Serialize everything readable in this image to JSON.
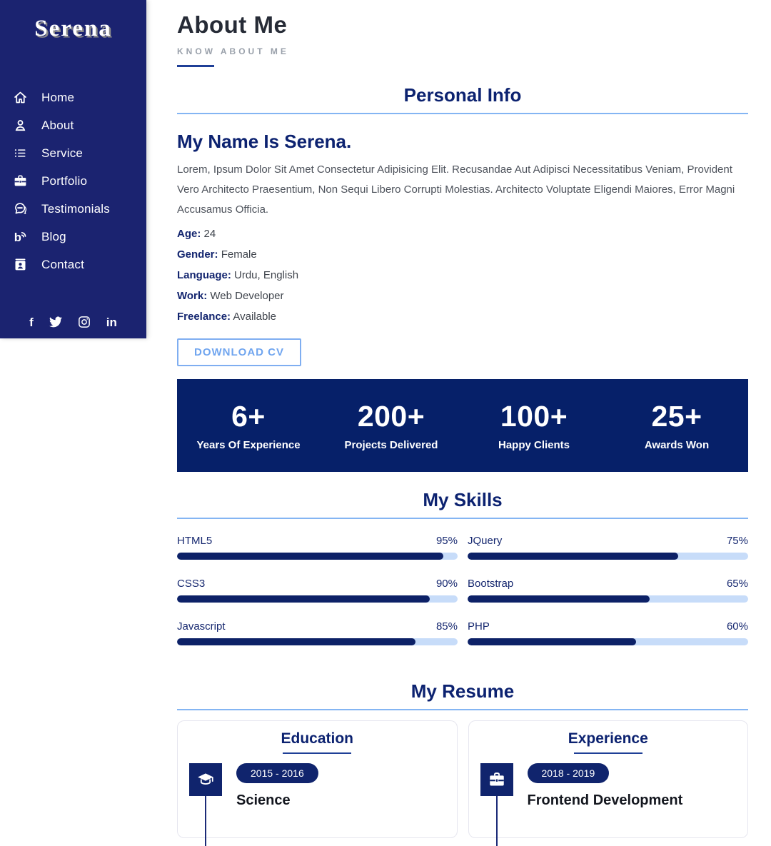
{
  "sidebar": {
    "logo": "Serena",
    "nav": [
      {
        "label": "Home",
        "icon": "home-icon"
      },
      {
        "label": "About",
        "icon": "user-icon"
      },
      {
        "label": "Service",
        "icon": "list-icon"
      },
      {
        "label": "Portfolio",
        "icon": "briefcase-icon"
      },
      {
        "label": "Testimonials",
        "icon": "chat-icon"
      },
      {
        "label": "Blog",
        "icon": "blog-icon"
      },
      {
        "label": "Contact",
        "icon": "contact-card-icon"
      }
    ],
    "social": [
      {
        "name": "facebook-icon",
        "glyph": "f"
      },
      {
        "name": "twitter-icon"
      },
      {
        "name": "instagram-icon"
      },
      {
        "name": "linkedin-icon",
        "glyph": "in"
      }
    ]
  },
  "header": {
    "title": "About Me",
    "subtitle": "KNOW ABOUT ME"
  },
  "personal_info": {
    "section_title": "Personal Info",
    "heading": "My Name Is Serena.",
    "paragraph": "Lorem, Ipsum Dolor Sit Amet Consectetur Adipisicing Elit. Recusandae Aut Adipisci Necessitatibus Veniam, Provident Vero Architecto Praesentium, Non Sequi Libero Corrupti Molestias. Architecto Voluptate Eligendi Maiores, Error Magni Accusamus Officia.",
    "details": [
      {
        "label": "Age:",
        "value": "24"
      },
      {
        "label": "Gender:",
        "value": "Female"
      },
      {
        "label": "Language:",
        "value": "Urdu, English"
      },
      {
        "label": "Work:",
        "value": "Web Developer"
      },
      {
        "label": "Freelance:",
        "value": "Available"
      }
    ],
    "download_button": "DOWNLOAD CV"
  },
  "stats": [
    {
      "value": "6+",
      "label": "Years Of Experience"
    },
    {
      "value": "200+",
      "label": "Projects Delivered"
    },
    {
      "value": "100+",
      "label": "Happy Clients"
    },
    {
      "value": "25+",
      "label": "Awards Won"
    }
  ],
  "skills": {
    "section_title": "My Skills",
    "items": [
      {
        "name": "HTML5",
        "percent": 95,
        "percent_label": "95%"
      },
      {
        "name": "CSS3",
        "percent": 90,
        "percent_label": "90%"
      },
      {
        "name": "Javascript",
        "percent": 85,
        "percent_label": "85%"
      },
      {
        "name": "JQuery",
        "percent": 75,
        "percent_label": "75%"
      },
      {
        "name": "Bootstrap",
        "percent": 65,
        "percent_label": "65%"
      },
      {
        "name": "PHP",
        "percent": 60,
        "percent_label": "60%"
      }
    ]
  },
  "resume": {
    "section_title": "My Resume",
    "columns": [
      {
        "title": "Education",
        "icon": "graduation-cap-icon",
        "entries": [
          {
            "period": "2015 - 2016",
            "heading": "Science"
          }
        ]
      },
      {
        "title": "Experience",
        "icon": "briefcase-icon",
        "entries": [
          {
            "period": "2018 - 2019",
            "heading": "Frontend Development"
          }
        ]
      }
    ]
  },
  "colors": {
    "sidebar_navy": "#1b2370",
    "stats_navy": "#062069",
    "heading_navy": "#0c2270",
    "accent_light_blue": "#84b5f3",
    "skill_track": "#c7dcf9",
    "skill_fill": "#0d2167",
    "button_blue": "#70a5ef"
  }
}
